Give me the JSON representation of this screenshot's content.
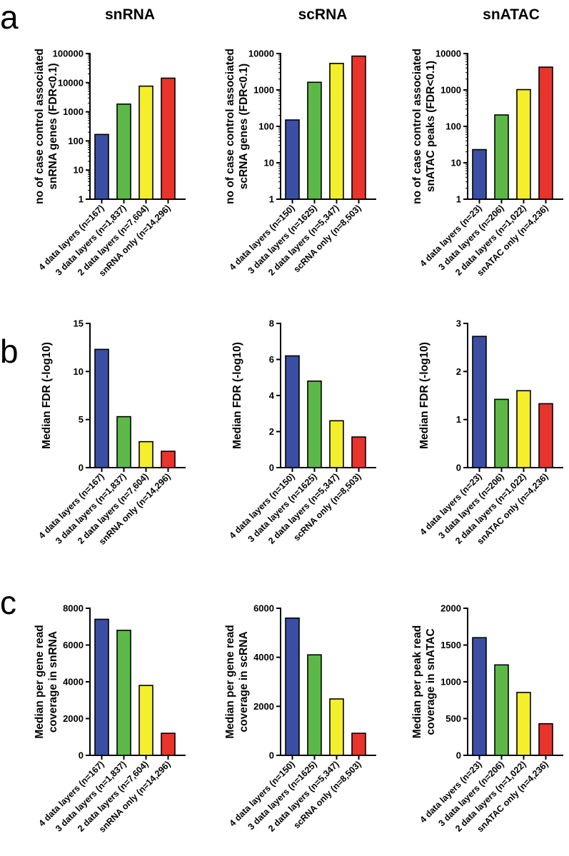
{
  "panel_labels": [
    "a",
    "b",
    "c"
  ],
  "column_titles": [
    "snRNA",
    "scRNA",
    "snATAC"
  ],
  "colors": {
    "bar_colors": [
      "#3a4ea3",
      "#5cb947",
      "#f3ef2a",
      "#e8342b"
    ],
    "outline": "#000000"
  },
  "chart_data": [
    {
      "type": "bar",
      "row": "a",
      "column": "snRNA",
      "scale": "log",
      "categories": [
        "4 data layers (n=167)",
        "3 data layers (n=1,837)",
        "2 data layers (n=7,604)",
        "snRNA only (n=14,296)"
      ],
      "values": [
        167,
        1837,
        7604,
        14296
      ],
      "ylabel": [
        "no of case control associated",
        "snRNA genes (FDR<0.1)"
      ],
      "ylim": [
        1,
        100000
      ],
      "ticks": [
        1,
        10,
        100,
        1000,
        10000,
        100000
      ],
      "tick_labels": [
        "1",
        "10",
        "100",
        "1000",
        "10000",
        "100000"
      ]
    },
    {
      "type": "bar",
      "row": "a",
      "column": "scRNA",
      "scale": "log",
      "categories": [
        "4 data layers (n=150)",
        "3 data layers (n=1625)",
        "2 data layers (n=5,347)",
        "scRNA only (n=8,503)"
      ],
      "values": [
        150,
        1625,
        5347,
        8503
      ],
      "ylabel": [
        "no of case control associated",
        "scRNA genes (FDR<0.1)"
      ],
      "ylim": [
        1,
        10000
      ],
      "ticks": [
        1,
        10,
        100,
        1000,
        10000
      ],
      "tick_labels": [
        "1",
        "10",
        "100",
        "1000",
        "10000"
      ]
    },
    {
      "type": "bar",
      "row": "a",
      "column": "snATAC",
      "scale": "log",
      "categories": [
        "4 data layers (n=23)",
        "3 data layers (n=206)",
        "2 data layers (n=1,022)",
        "snATAC only (n=4,236)"
      ],
      "values": [
        23,
        206,
        1022,
        4236
      ],
      "ylabel": [
        "no of case control associated",
        "snATAC peaks (FDR<0.1)"
      ],
      "ylim": [
        1,
        10000
      ],
      "ticks": [
        1,
        10,
        100,
        1000,
        10000
      ],
      "tick_labels": [
        "1",
        "10",
        "100",
        "1000",
        "10000"
      ]
    },
    {
      "type": "bar",
      "row": "b",
      "column": "snRNA",
      "scale": "linear",
      "categories": [
        "4 data layers (n=167)",
        "3 data layers (n=1,837)",
        "2 data layers (n=7,604)",
        "snRNA only (n=14,296)"
      ],
      "values": [
        12.3,
        5.3,
        2.7,
        1.7
      ],
      "ylabel": [
        "Median FDR (-log10)"
      ],
      "ylim": [
        0,
        15
      ],
      "ticks": [
        0,
        5,
        10,
        15
      ],
      "tick_labels": [
        "0",
        "5",
        "10",
        "15"
      ]
    },
    {
      "type": "bar",
      "row": "b",
      "column": "scRNA",
      "scale": "linear",
      "categories": [
        "4 data layers (n=150)",
        "3 data layers (n=1625)",
        "2 data layers (n=5,347)",
        "scRNA only (n=8,503)"
      ],
      "values": [
        6.2,
        4.8,
        2.6,
        1.7
      ],
      "ylabel": [
        "Median FDR (-log10)"
      ],
      "ylim": [
        0,
        8
      ],
      "ticks": [
        0,
        2,
        4,
        6,
        8
      ],
      "tick_labels": [
        "0",
        "2",
        "4",
        "6",
        "8"
      ]
    },
    {
      "type": "bar",
      "row": "b",
      "column": "snATAC",
      "scale": "linear",
      "categories": [
        "4 data layers (n=23)",
        "3 data layers (n=206)",
        "2 data layers (n=1,022)",
        "snATAC only (n=4,236)"
      ],
      "values": [
        2.73,
        1.42,
        1.6,
        1.33
      ],
      "ylabel": [
        "Median FDR (-log10)"
      ],
      "ylim": [
        0,
        3
      ],
      "ticks": [
        0,
        1,
        2,
        3
      ],
      "tick_labels": [
        "0",
        "1",
        "2",
        "3"
      ]
    },
    {
      "type": "bar",
      "row": "c",
      "column": "snRNA",
      "scale": "linear",
      "categories": [
        "4 data layers (n=167)",
        "3 data layers (n=1,837)",
        "2 data layers (n=7,604)",
        "snRNA only (n=14,296)"
      ],
      "values": [
        7400,
        6800,
        3800,
        1200
      ],
      "ylabel": [
        "Median per gene read",
        "coverage in snRNA"
      ],
      "ylim": [
        0,
        8000
      ],
      "ticks": [
        0,
        2000,
        4000,
        6000,
        8000
      ],
      "tick_labels": [
        "0",
        "2000",
        "4000",
        "6000",
        "8000"
      ]
    },
    {
      "type": "bar",
      "row": "c",
      "column": "scRNA",
      "scale": "linear",
      "categories": [
        "4 data layers (n=150)",
        "3 data layers (n=1625)",
        "2 data layers (n=5,347)",
        "scRNA only (n=8,503)"
      ],
      "values": [
        5600,
        4100,
        2300,
        900
      ],
      "ylabel": [
        "Median per gene read",
        "coverage in scRNA"
      ],
      "ylim": [
        0,
        6000
      ],
      "ticks": [
        0,
        2000,
        4000,
        6000
      ],
      "tick_labels": [
        "0",
        "2000",
        "4000",
        "6000"
      ]
    },
    {
      "type": "bar",
      "row": "c",
      "column": "snATAC",
      "scale": "linear",
      "categories": [
        "4 data layers (n=23)",
        "3 data layers (n=206)",
        "2 data layers (n=1,022)",
        "snATAC only (n=4,236)"
      ],
      "values": [
        1600,
        1230,
        855,
        430
      ],
      "ylabel": [
        "Median  per peak read",
        "coverage in snATAC"
      ],
      "ylim": [
        0,
        2000
      ],
      "ticks": [
        0,
        500,
        1000,
        1500,
        2000
      ],
      "tick_labels": [
        "0",
        "500",
        "1000",
        "1500",
        "2000"
      ]
    }
  ]
}
